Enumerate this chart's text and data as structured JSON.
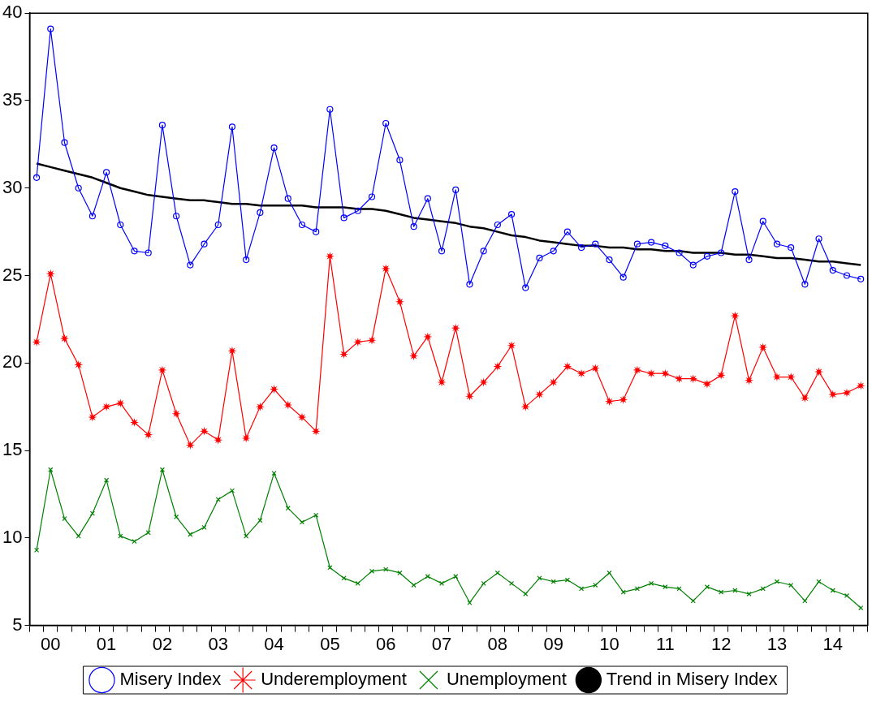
{
  "chart_data": {
    "type": "line",
    "categories": [
      null,
      "00",
      null,
      null,
      null,
      "01",
      null,
      null,
      null,
      "02",
      null,
      null,
      null,
      "03",
      null,
      null,
      null,
      "04",
      null,
      null,
      null,
      "05",
      null,
      null,
      null,
      "06",
      null,
      null,
      null,
      "07",
      null,
      null,
      null,
      "08",
      null,
      null,
      null,
      "09",
      null,
      null,
      null,
      "10",
      null,
      null,
      null,
      "11",
      null,
      null,
      null,
      "12",
      null,
      null,
      null,
      "13",
      null,
      null,
      null,
      "14",
      null,
      null
    ],
    "series": [
      {
        "name": "Misery Index",
        "color": "#0000ff",
        "marker": "circle",
        "values": [
          30.6,
          39.1,
          32.6,
          30.0,
          28.4,
          30.9,
          27.9,
          26.4,
          26.3,
          33.6,
          28.4,
          25.6,
          26.8,
          27.9,
          33.5,
          25.9,
          28.6,
          32.3,
          29.4,
          27.9,
          27.5,
          34.5,
          28.3,
          28.7,
          29.5,
          33.7,
          31.6,
          27.8,
          29.4,
          26.4,
          29.9,
          24.5,
          26.4,
          27.9,
          28.5,
          24.3,
          26.0,
          26.4,
          27.5,
          26.6,
          26.8,
          25.9,
          24.9,
          26.8,
          26.9,
          26.7,
          26.3,
          25.6,
          26.1,
          26.3,
          29.8,
          25.9,
          28.1,
          26.8,
          26.6,
          24.5,
          27.1,
          25.3,
          25.0,
          24.8
        ]
      },
      {
        "name": "Underemployment",
        "color": "#ff0000",
        "marker": "star",
        "values": [
          21.2,
          25.1,
          21.4,
          19.9,
          16.9,
          17.5,
          17.7,
          16.6,
          15.9,
          19.6,
          17.1,
          15.3,
          16.1,
          15.6,
          20.7,
          15.7,
          17.5,
          18.5,
          17.6,
          16.9,
          16.1,
          26.1,
          20.5,
          21.2,
          21.3,
          25.4,
          23.5,
          20.4,
          21.5,
          18.9,
          22.0,
          18.1,
          18.9,
          19.8,
          21.0,
          17.5,
          18.2,
          18.9,
          19.8,
          19.4,
          19.7,
          17.8,
          17.9,
          19.6,
          19.4,
          19.4,
          19.1,
          19.1,
          18.8,
          19.3,
          22.7,
          19.0,
          20.9,
          19.2,
          19.2,
          18.0,
          19.5,
          18.2,
          18.3,
          18.7
        ]
      },
      {
        "name": "Unemployment",
        "color": "#008000",
        "marker": "cross",
        "values": [
          9.3,
          13.9,
          11.1,
          10.1,
          11.4,
          13.3,
          10.1,
          9.8,
          10.3,
          13.9,
          11.2,
          10.2,
          10.6,
          12.2,
          12.7,
          10.1,
          11.0,
          13.7,
          11.7,
          10.9,
          11.3,
          8.3,
          7.7,
          7.4,
          8.1,
          8.2,
          8.0,
          7.3,
          7.8,
          7.4,
          7.8,
          6.3,
          7.4,
          8.0,
          7.4,
          6.8,
          7.7,
          7.5,
          7.6,
          7.1,
          7.3,
          8.0,
          6.9,
          7.1,
          7.4,
          7.2,
          7.1,
          6.4,
          7.2,
          6.9,
          7.0,
          6.8,
          7.1,
          7.5,
          7.3,
          6.4,
          7.5,
          7.0,
          6.7,
          6.0
        ]
      },
      {
        "name": "Trend in Misery Index",
        "color": "#000000",
        "marker": "none",
        "values": [
          31.4,
          31.2,
          31.0,
          30.8,
          30.6,
          30.3,
          30.0,
          29.8,
          29.6,
          29.5,
          29.4,
          29.3,
          29.3,
          29.2,
          29.1,
          29.1,
          29.0,
          29.0,
          29.0,
          29.0,
          28.9,
          28.9,
          28.9,
          28.8,
          28.8,
          28.7,
          28.5,
          28.3,
          28.2,
          28.1,
          28.0,
          27.8,
          27.7,
          27.5,
          27.3,
          27.2,
          27.0,
          26.9,
          26.8,
          26.7,
          26.7,
          26.6,
          26.6,
          26.5,
          26.5,
          26.4,
          26.4,
          26.3,
          26.3,
          26.3,
          26.2,
          26.2,
          26.1,
          26.0,
          26.0,
          25.9,
          25.8,
          25.8,
          25.7,
          25.6
        ]
      }
    ],
    "ylim": [
      5,
      40
    ],
    "yticks": [
      5,
      10,
      15,
      20,
      25,
      30,
      35,
      40
    ],
    "grid": false,
    "legend": "bottom"
  }
}
